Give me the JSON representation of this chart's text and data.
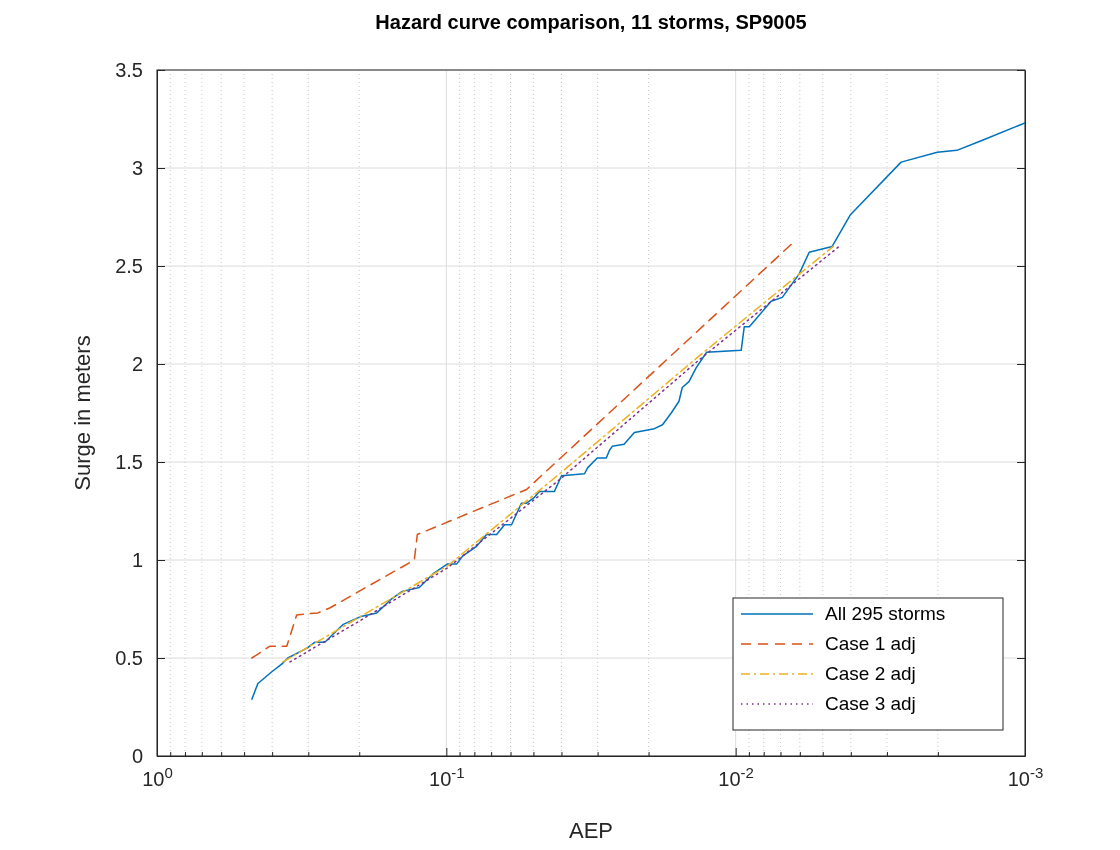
{
  "chart_data": {
    "type": "line",
    "title": "Hazard curve comparison, 11 storms, SP9005",
    "xlabel": "AEP",
    "ylabel": "Surge in meters",
    "log": "x",
    "xlim": [
      1,
      0.001
    ],
    "ylim": [
      0,
      3.5
    ],
    "xticks": [
      {
        "value": 1,
        "label": "10$^{0}$"
      },
      {
        "value": 0.9,
        "label": null
      },
      {
        "value": 0.8,
        "label": null
      },
      {
        "value": 0.7,
        "label": null
      },
      {
        "value": 0.6,
        "label": null
      },
      {
        "value": 0.5,
        "label": null
      },
      {
        "value": 0.4,
        "label": null
      },
      {
        "value": 0.3,
        "label": null
      },
      {
        "value": 0.2,
        "label": null
      },
      {
        "value": 0.1,
        "label": "10$^{-1}$"
      },
      {
        "value": 0.09,
        "label": null
      },
      {
        "value": 0.08,
        "label": null
      },
      {
        "value": 0.07,
        "label": null
      },
      {
        "value": 0.06,
        "label": null
      },
      {
        "value": 0.05,
        "label": null
      },
      {
        "value": 0.04,
        "label": null
      },
      {
        "value": 0.03,
        "label": null
      },
      {
        "value": 0.02,
        "label": null
      },
      {
        "value": 0.01,
        "label": "10$^{-2}$"
      },
      {
        "value": 0.009,
        "label": null
      },
      {
        "value": 0.008,
        "label": null
      },
      {
        "value": 0.007,
        "label": null
      },
      {
        "value": 0.006,
        "label": null
      },
      {
        "value": 0.005,
        "label": null
      },
      {
        "value": 0.004,
        "label": null
      },
      {
        "value": 0.003,
        "label": null
      },
      {
        "value": 0.002,
        "label": null
      },
      {
        "value": 0.001,
        "label": "10$^{-3}$"
      }
    ],
    "yticks": [
      0,
      0.5,
      1,
      1.5,
      2,
      2.5,
      3,
      3.5
    ],
    "grid": true,
    "legend": "bottom right",
    "marker": "none",
    "series": [
      {
        "name": "All 295 storms",
        "color": "#0072bd",
        "line_style": "solid",
        "x": [
          0.47,
          0.448,
          0.401,
          0.37,
          0.353,
          0.303,
          0.285,
          0.263,
          0.239,
          0.228,
          0.199,
          0.174,
          0.155,
          0.142,
          0.124,
          0.111,
          0.099,
          0.092,
          0.0879,
          0.0786,
          0.0726,
          0.067,
          0.0629,
          0.0595,
          0.055,
          0.0528,
          0.0496,
          0.0477,
          0.0423,
          0.04,
          0.0333,
          0.0325,
          0.0301,
          0.028,
          0.0273,
          0.0267,
          0.0243,
          0.0224,
          0.0191,
          0.0179,
          0.0167,
          0.0157,
          0.0153,
          0.0145,
          0.0137,
          0.0126,
          0.00957,
          0.00934,
          0.00897,
          0.00754,
          0.0069,
          0.00603,
          0.00557,
          0.00464,
          0.00402,
          0.00268,
          0.00201,
          0.00172,
          0.00141,
          0.001
        ],
        "values": [
          0.29,
          0.37,
          0.43,
          0.47,
          0.5,
          0.55,
          0.58,
          0.58,
          0.64,
          0.67,
          0.71,
          0.73,
          0.8,
          0.84,
          0.86,
          0.93,
          0.98,
          0.98,
          1.02,
          1.07,
          1.13,
          1.13,
          1.18,
          1.18,
          1.29,
          1.29,
          1.32,
          1.35,
          1.35,
          1.43,
          1.44,
          1.47,
          1.52,
          1.52,
          1.56,
          1.58,
          1.59,
          1.65,
          1.67,
          1.69,
          1.75,
          1.81,
          1.88,
          1.91,
          1.98,
          2.06,
          2.07,
          2.19,
          2.19,
          2.32,
          2.34,
          2.46,
          2.57,
          2.6,
          2.76,
          3.03,
          3.08,
          3.09,
          3.14,
          3.23
        ]
      },
      {
        "name": "Case 1 adj",
        "color": "#d95319",
        "line_style": "dashed",
        "x": [
          0.47,
          0.407,
          0.356,
          0.329,
          0.278,
          0.253,
          0.129,
          0.126,
          0.0528,
          0.00643
        ],
        "values": [
          0.5,
          0.56,
          0.56,
          0.72,
          0.73,
          0.755,
          1.0,
          1.13,
          1.36,
          2.61
        ]
      },
      {
        "name": "Case 2 adj",
        "color": "#edb120",
        "line_style": "dashdot",
        "x": [
          0.367,
          0.199,
          0.099,
          0.0406,
          0.0134,
          0.0046
        ],
        "values": [
          0.48,
          0.71,
          0.97,
          1.44,
          2.04,
          2.6
        ]
      },
      {
        "name": "Case 3 adj",
        "color": "#7e2f8e",
        "line_style": "dotted",
        "x": [
          0.347,
          0.199,
          0.099,
          0.0406,
          0.0134,
          0.00439
        ],
        "values": [
          0.48,
          0.69,
          0.96,
          1.41,
          2.02,
          2.6
        ]
      }
    ]
  }
}
